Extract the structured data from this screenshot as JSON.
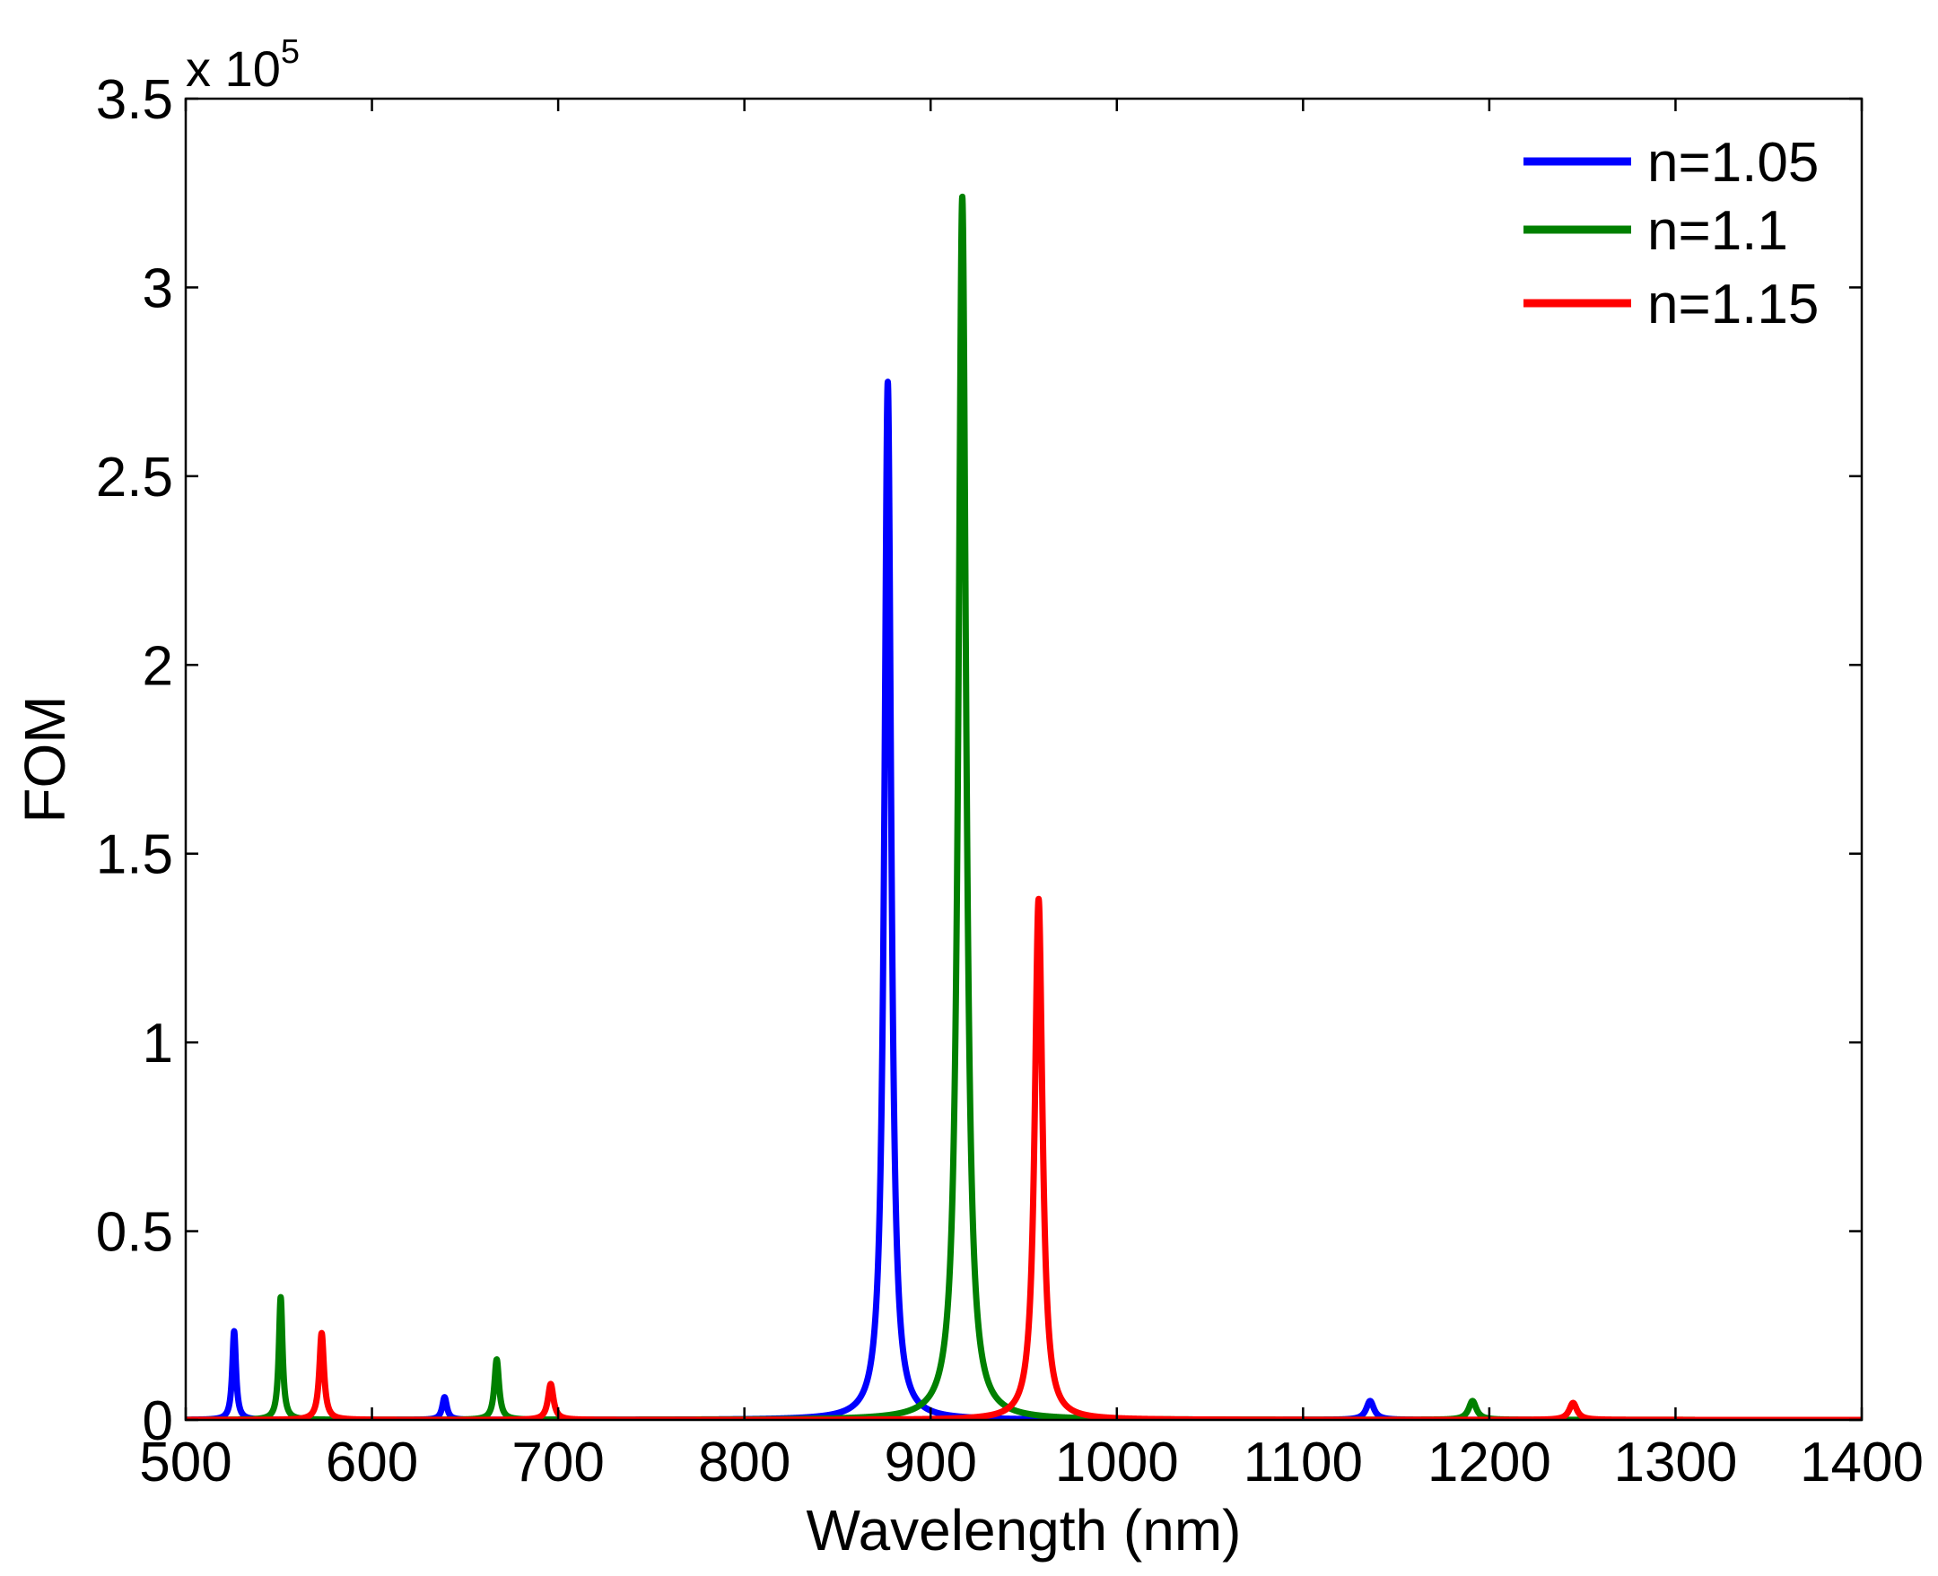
{
  "chart_data": {
    "type": "line",
    "title": "",
    "xlabel": "Wavelength (nm)",
    "ylabel": "FOM",
    "xlim": [
      500,
      1400
    ],
    "ylim": [
      0,
      350000
    ],
    "x_ticks": [
      500,
      600,
      700,
      800,
      900,
      1000,
      1100,
      1200,
      1300,
      1400
    ],
    "x_tick_labels": [
      "500",
      "600",
      "700",
      "800",
      "900",
      "1000",
      "1100",
      "1200",
      "1300",
      "1400"
    ],
    "y_ticks": [
      0,
      50000,
      100000,
      150000,
      200000,
      250000,
      300000,
      350000
    ],
    "y_tick_labels": [
      "0",
      "0.5",
      "1",
      "1.5",
      "2",
      "2.5",
      "3",
      "3.5"
    ],
    "y_exponent_label": {
      "prefix": "x 10",
      "power": "5"
    },
    "grid": false,
    "legend_position": "top-right",
    "series": [
      {
        "name": "n=1.05",
        "color": "#0000ff",
        "peaks": [
          {
            "x": 526,
            "y": 23500,
            "width": 1.2
          },
          {
            "x": 639,
            "y": 6000,
            "width": 1.5
          },
          {
            "x": 877,
            "y": 275000,
            "width": 2.2
          },
          {
            "x": 1136,
            "y": 5000,
            "width": 2.5
          }
        ]
      },
      {
        "name": "n=1.1",
        "color": "#008000",
        "peaks": [
          {
            "x": 551,
            "y": 32500,
            "width": 1.2
          },
          {
            "x": 667,
            "y": 16000,
            "width": 1.5
          },
          {
            "x": 917,
            "y": 324000,
            "width": 2.5
          },
          {
            "x": 1191,
            "y": 5000,
            "width": 2.5
          }
        ]
      },
      {
        "name": "n=1.15",
        "color": "#ff0000",
        "peaks": [
          {
            "x": 573,
            "y": 23000,
            "width": 1.5
          },
          {
            "x": 696,
            "y": 9500,
            "width": 1.8
          },
          {
            "x": 958,
            "y": 138000,
            "width": 2.5
          },
          {
            "x": 1245,
            "y": 4500,
            "width": 2.5
          }
        ]
      }
    ]
  }
}
